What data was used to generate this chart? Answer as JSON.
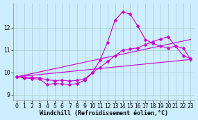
{
  "background_color": "#cceeff",
  "grid_color": "#aacccc",
  "line_color": "#cc00cc",
  "marker": "D",
  "markersize": 2.5,
  "linewidth": 0.8,
  "xlim": [
    -0.5,
    23.5
  ],
  "ylim": [
    8.75,
    13.1
  ],
  "xticks": [
    0,
    1,
    2,
    3,
    4,
    5,
    6,
    7,
    8,
    9,
    10,
    11,
    12,
    13,
    14,
    15,
    16,
    17,
    18,
    19,
    20,
    21,
    22,
    23
  ],
  "yticks": [
    9,
    10,
    11,
    12
  ],
  "xlabel": "Windchill (Refroidissement éolien,°C)",
  "xlabel_fontsize": 6,
  "tick_fontsize": 5.5,
  "curves": [
    {
      "x": [
        0,
        1,
        2,
        3,
        4,
        5,
        6,
        7,
        8,
        9,
        10,
        11,
        12,
        13,
        14,
        15,
        16,
        17,
        18,
        19,
        20,
        21,
        22,
        23
      ],
      "y": [
        9.8,
        9.75,
        9.72,
        9.7,
        9.45,
        9.5,
        9.48,
        9.45,
        9.5,
        9.65,
        9.98,
        10.55,
        11.35,
        12.35,
        12.72,
        12.62,
        12.08,
        11.48,
        11.3,
        11.18,
        11.1,
        11.18,
        11.08,
        10.6
      ],
      "marker": true
    },
    {
      "x": [
        0,
        1,
        2,
        3,
        4,
        5,
        6,
        7,
        8,
        9,
        10,
        11,
        12,
        13,
        14,
        15,
        16,
        17,
        18,
        19,
        20,
        21,
        22,
        23
      ],
      "y": [
        9.8,
        9.78,
        9.76,
        9.75,
        9.67,
        9.63,
        9.65,
        9.61,
        9.64,
        9.72,
        9.98,
        10.22,
        10.48,
        10.75,
        11.0,
        11.05,
        11.1,
        11.25,
        11.38,
        11.5,
        11.6,
        11.18,
        10.75,
        10.62
      ],
      "marker": true
    },
    {
      "x": [
        0,
        23
      ],
      "y": [
        9.8,
        10.58
      ],
      "marker": false
    },
    {
      "x": [
        0,
        23
      ],
      "y": [
        9.8,
        11.48
      ],
      "marker": false
    }
  ]
}
